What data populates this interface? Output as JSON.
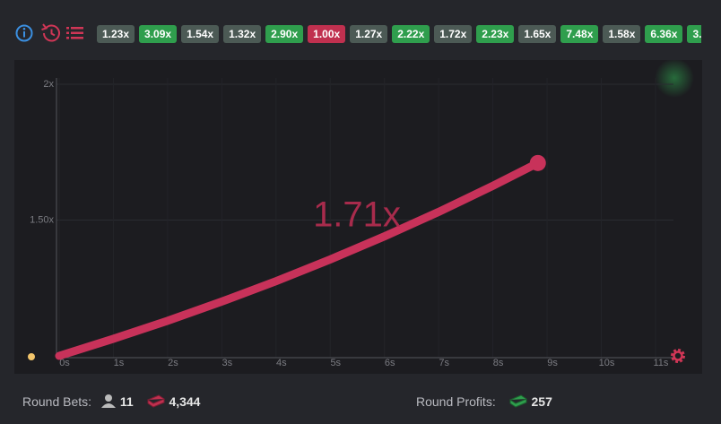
{
  "history": [
    {
      "label": "1.23x",
      "color": "#4c5a55"
    },
    {
      "label": "3.09x",
      "color": "#2f9e4d"
    },
    {
      "label": "1.54x",
      "color": "#4c5a55"
    },
    {
      "label": "1.32x",
      "color": "#4c5a55"
    },
    {
      "label": "2.90x",
      "color": "#2f9e4d"
    },
    {
      "label": "1.00x",
      "color": "#c0304f"
    },
    {
      "label": "1.27x",
      "color": "#4c5a55"
    },
    {
      "label": "2.22x",
      "color": "#2f9e4d"
    },
    {
      "label": "1.72x",
      "color": "#4c5a55"
    },
    {
      "label": "2.23x",
      "color": "#2f9e4d"
    },
    {
      "label": "1.65x",
      "color": "#4c5a55"
    },
    {
      "label": "7.48x",
      "color": "#2f9e4d"
    },
    {
      "label": "1.58x",
      "color": "#4c5a55"
    },
    {
      "label": "6.36x",
      "color": "#2f9e4d"
    },
    {
      "label": "3.",
      "color": "#2f9e4d"
    }
  ],
  "chart_data": {
    "type": "line",
    "current_label": "1.71x",
    "color": "#c8325a",
    "grid": true,
    "x": [
      0,
      1,
      2,
      3,
      4,
      5,
      6,
      7,
      8,
      8.83
    ],
    "values": [
      1,
      1.063,
      1.129,
      1.2,
      1.275,
      1.355,
      1.44,
      1.53,
      1.626,
      1.71
    ],
    "xlim": [
      0,
      11.5
    ],
    "ylim": [
      1,
      2
    ],
    "xticks": [
      {
        "value": 0,
        "label": "0s"
      },
      {
        "value": 1,
        "label": "1s"
      },
      {
        "value": 2,
        "label": "2s"
      },
      {
        "value": 3,
        "label": "3s"
      },
      {
        "value": 4,
        "label": "4s"
      },
      {
        "value": 5,
        "label": "5s"
      },
      {
        "value": 6,
        "label": "6s"
      },
      {
        "value": 7,
        "label": "7s"
      },
      {
        "value": 8,
        "label": "8s"
      },
      {
        "value": 9,
        "label": "9s"
      },
      {
        "value": 10,
        "label": "10s"
      },
      {
        "value": 11,
        "label": "11s"
      }
    ],
    "yticks": [
      {
        "value": 1.5,
        "label": "1.50x"
      },
      {
        "value": 2,
        "label": "2x"
      }
    ]
  },
  "stats": {
    "bets_label": "Round Bets:",
    "players": 11,
    "bets": "4,344",
    "profits_label": "Round Profits:",
    "profits": 257
  }
}
